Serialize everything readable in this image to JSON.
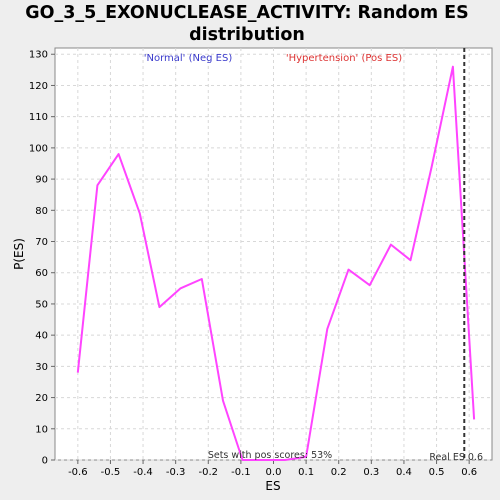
{
  "chart_data": {
    "type": "line",
    "title": "GO_3_5_EXONUCLEASE_ACTIVITY: Random ES distribution",
    "xlabel": "ES",
    "ylabel": "P(ES)",
    "xlim": [
      -0.67,
      0.67
    ],
    "ylim": [
      0,
      132
    ],
    "x_ticks": [
      -0.6,
      -0.5,
      -0.4,
      -0.3,
      -0.2,
      -0.1,
      0.0,
      0.1,
      0.2,
      0.3,
      0.4,
      0.5,
      0.6
    ],
    "y_ticks": [
      0,
      10,
      20,
      30,
      40,
      50,
      60,
      70,
      80,
      90,
      100,
      110,
      120,
      130
    ],
    "grid": true,
    "series": [
      {
        "color": "#ff44ff",
        "x": [
          -0.6,
          -0.54,
          -0.475,
          -0.41,
          -0.35,
          -0.285,
          -0.22,
          -0.155,
          -0.095,
          -0.03,
          0.035,
          0.1,
          0.165,
          0.23,
          0.295,
          0.36,
          0.42,
          0.485,
          0.55,
          0.615
        ],
        "y": [
          28,
          88,
          98,
          79,
          49,
          55,
          58,
          19,
          0,
          0,
          0,
          1,
          42,
          61,
          56,
          69,
          64,
          94,
          126,
          13
        ]
      }
    ],
    "marker_line": {
      "x": 0.585,
      "color": "#333333",
      "style": "dashed"
    },
    "legend": {
      "neg_label": "'Normal' (Neg ES)",
      "neg_color": "#3a3acc",
      "pos_label": "'Hypertension' (Pos ES)",
      "pos_color": "#dd3333"
    },
    "annotations": {
      "pos_scores": "Sets with pos scores: 53%",
      "real_es": "Real ES 0.6"
    }
  }
}
